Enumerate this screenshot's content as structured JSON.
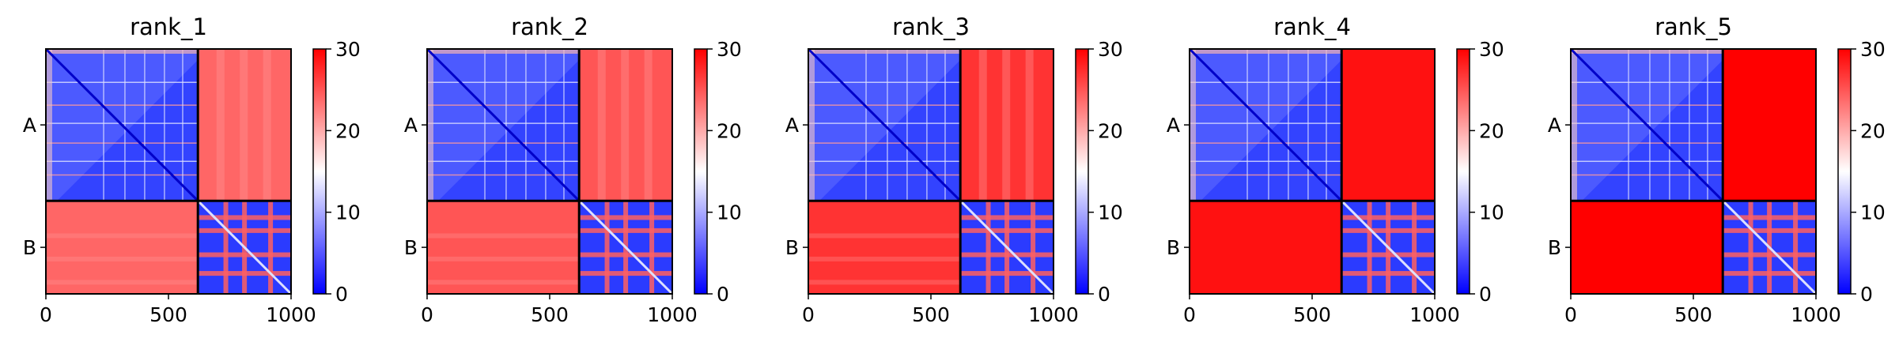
{
  "chart_data": {
    "type": "heatmap",
    "colormap": "bwr",
    "colors": {
      "low": "#0000ff",
      "mid": "#ffffff",
      "high": "#ff0000",
      "separator": "#000000"
    },
    "x_ticks": [
      "0",
      "500",
      "1000"
    ],
    "x_range": [
      0,
      1000
    ],
    "chain_boundary": 620,
    "row_labels": [
      "A",
      "B"
    ],
    "colorbar": {
      "range": [
        0,
        30
      ],
      "ticks": [
        "0",
        "10",
        "20",
        "30"
      ]
    },
    "panels": [
      {
        "title": "rank_1",
        "inter_chain_level": 24
      },
      {
        "title": "rank_2",
        "inter_chain_level": 25
      },
      {
        "title": "rank_3",
        "inter_chain_level": 27
      },
      {
        "title": "rank_4",
        "inter_chain_level": 29
      },
      {
        "title": "rank_5",
        "inter_chain_level": 30
      }
    ]
  }
}
